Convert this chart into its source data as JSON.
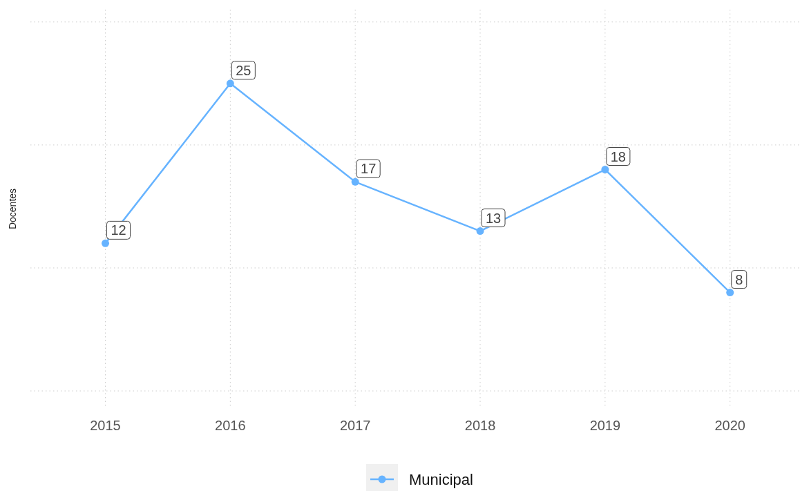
{
  "chart_data": {
    "type": "line",
    "ylabel": "Docentes",
    "x": [
      2015,
      2016,
      2017,
      2018,
      2019,
      2020
    ],
    "series": [
      {
        "name": "Municipal",
        "color": "#66b3ff",
        "values": [
          12,
          25,
          17,
          13,
          18,
          8
        ]
      }
    ],
    "xlim": [
      2014.4,
      2020.56
    ],
    "xticks": [
      2015,
      2016,
      2017,
      2018,
      2019,
      2020
    ],
    "ylim": [
      -1.4,
      31
    ],
    "yticks": [
      {
        "value": 0,
        "label": null
      },
      {
        "value": 10,
        "label": null
      },
      {
        "value": 20,
        "label": null
      },
      {
        "value": 30,
        "label": null
      }
    ],
    "tick_labels": "x",
    "grid": true,
    "legend": "bottom",
    "marker": "circle",
    "line_style": "solid",
    "data_labels": true
  }
}
